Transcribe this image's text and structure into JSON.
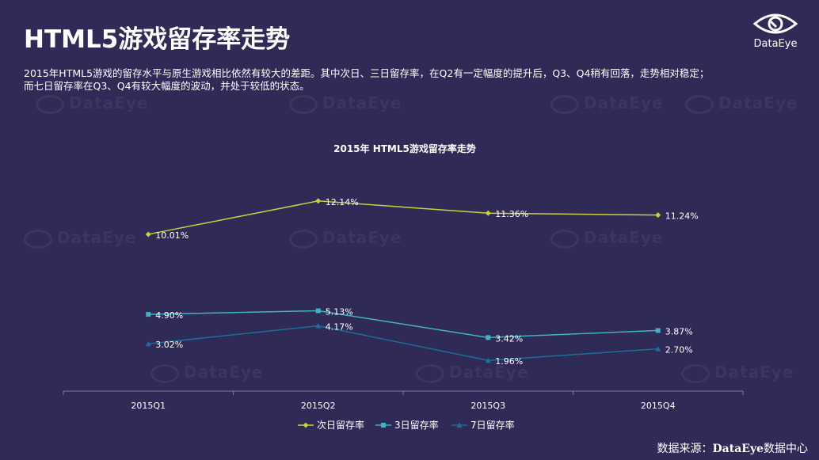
{
  "page": {
    "title": "HTML5游戏留存率走势",
    "description_line1": "2015年HTML5游戏的留存水平与原生游戏相比依然有较大的差距。其中次日、三日留存率，在Q2有一定幅度的提升后，Q3、Q4稍有回落，走势相对稳定；",
    "description_line2": "而七日留存率在Q3、Q4有较大幅度的波动，并处于较低的状态。",
    "source_prefix": "数据来源：",
    "source_brand": "DataEye",
    "source_suffix": "数据中心"
  },
  "logo": {
    "text": "DataEye",
    "icon": "eye-icon"
  },
  "watermark": {
    "text": "DataEye"
  },
  "chart_data": {
    "type": "line",
    "title": "2015年 HTML5游戏留存率走势",
    "categories": [
      "2015Q1",
      "2015Q2",
      "2015Q3",
      "2015Q4"
    ],
    "ylim": [
      0,
      14
    ],
    "grid": false,
    "legend_position": "bottom",
    "series": [
      {
        "name": "次日留存率",
        "values": [
          10.01,
          12.14,
          11.36,
          11.24
        ],
        "labels": [
          "10.01%",
          "12.14%",
          "11.36%",
          "11.24%"
        ],
        "color": "#c9d13a",
        "marker": "diamond"
      },
      {
        "name": "3日留存率",
        "values": [
          4.9,
          5.13,
          3.42,
          3.87
        ],
        "labels": [
          "4.90%",
          "5.13%",
          "3.42%",
          "3.87%"
        ],
        "color": "#3fb3c4",
        "marker": "square"
      },
      {
        "name": "7日留存率",
        "values": [
          3.02,
          4.17,
          1.96,
          2.7
        ],
        "labels": [
          "3.02%",
          "4.17%",
          "1.96%",
          "2.70%"
        ],
        "color": "#1f6e99",
        "marker": "triangle"
      }
    ]
  }
}
